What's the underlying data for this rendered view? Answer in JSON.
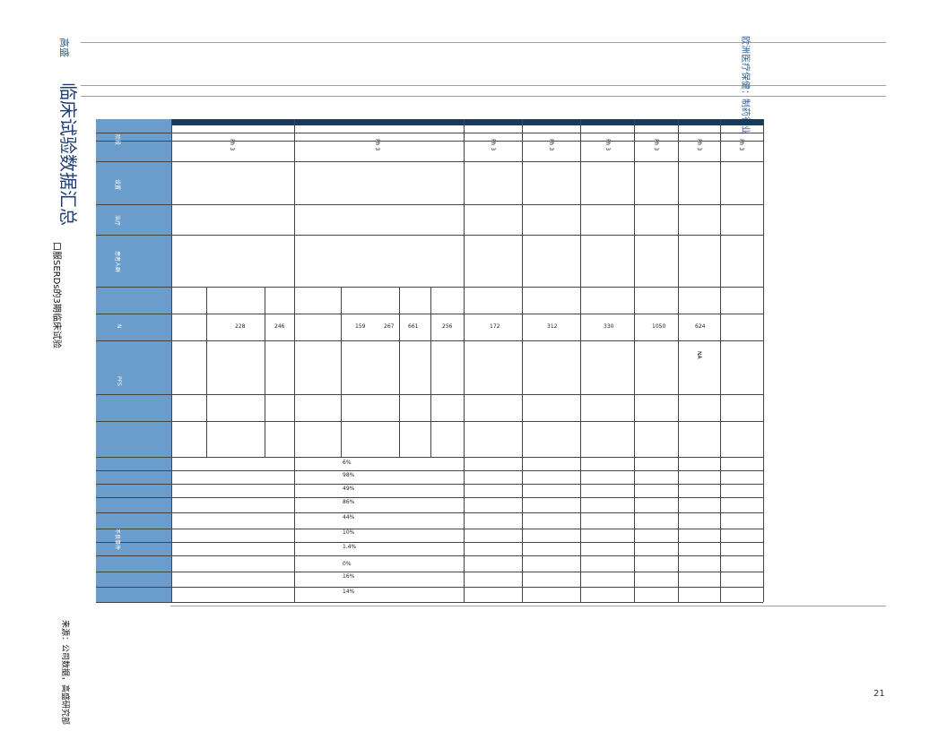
{
  "header": {
    "brand": "高盛",
    "section": "欧洲医疗保健：制药行业"
  },
  "title": "临床试验数据汇总",
  "subtitle": "口服SERDs的3期临床试验",
  "table": {
    "row_labels": [
      "阶段",
      "设置",
      "治疗",
      "患者人群",
      "N",
      "PFS",
      "不良事件"
    ],
    "phases": [
      "Ph 3",
      "Ph 3",
      "Ph 3",
      "Ph 3",
      "Ph 3",
      "Ph 3",
      "Ph 3",
      "Ph 3"
    ],
    "n": [
      "228",
      "246",
      "159",
      "267",
      "661",
      "256",
      "172",
      "312",
      "330",
      "1050",
      "624"
    ],
    "pfs": [
      "NA"
    ],
    "ae": [
      "6%",
      "98%",
      "49%",
      "86%",
      "44%",
      "10%",
      "1.4%",
      "0%",
      "16%",
      "14%"
    ]
  },
  "source": "来源：公司数据，高盛研究部",
  "page_number": "21"
}
